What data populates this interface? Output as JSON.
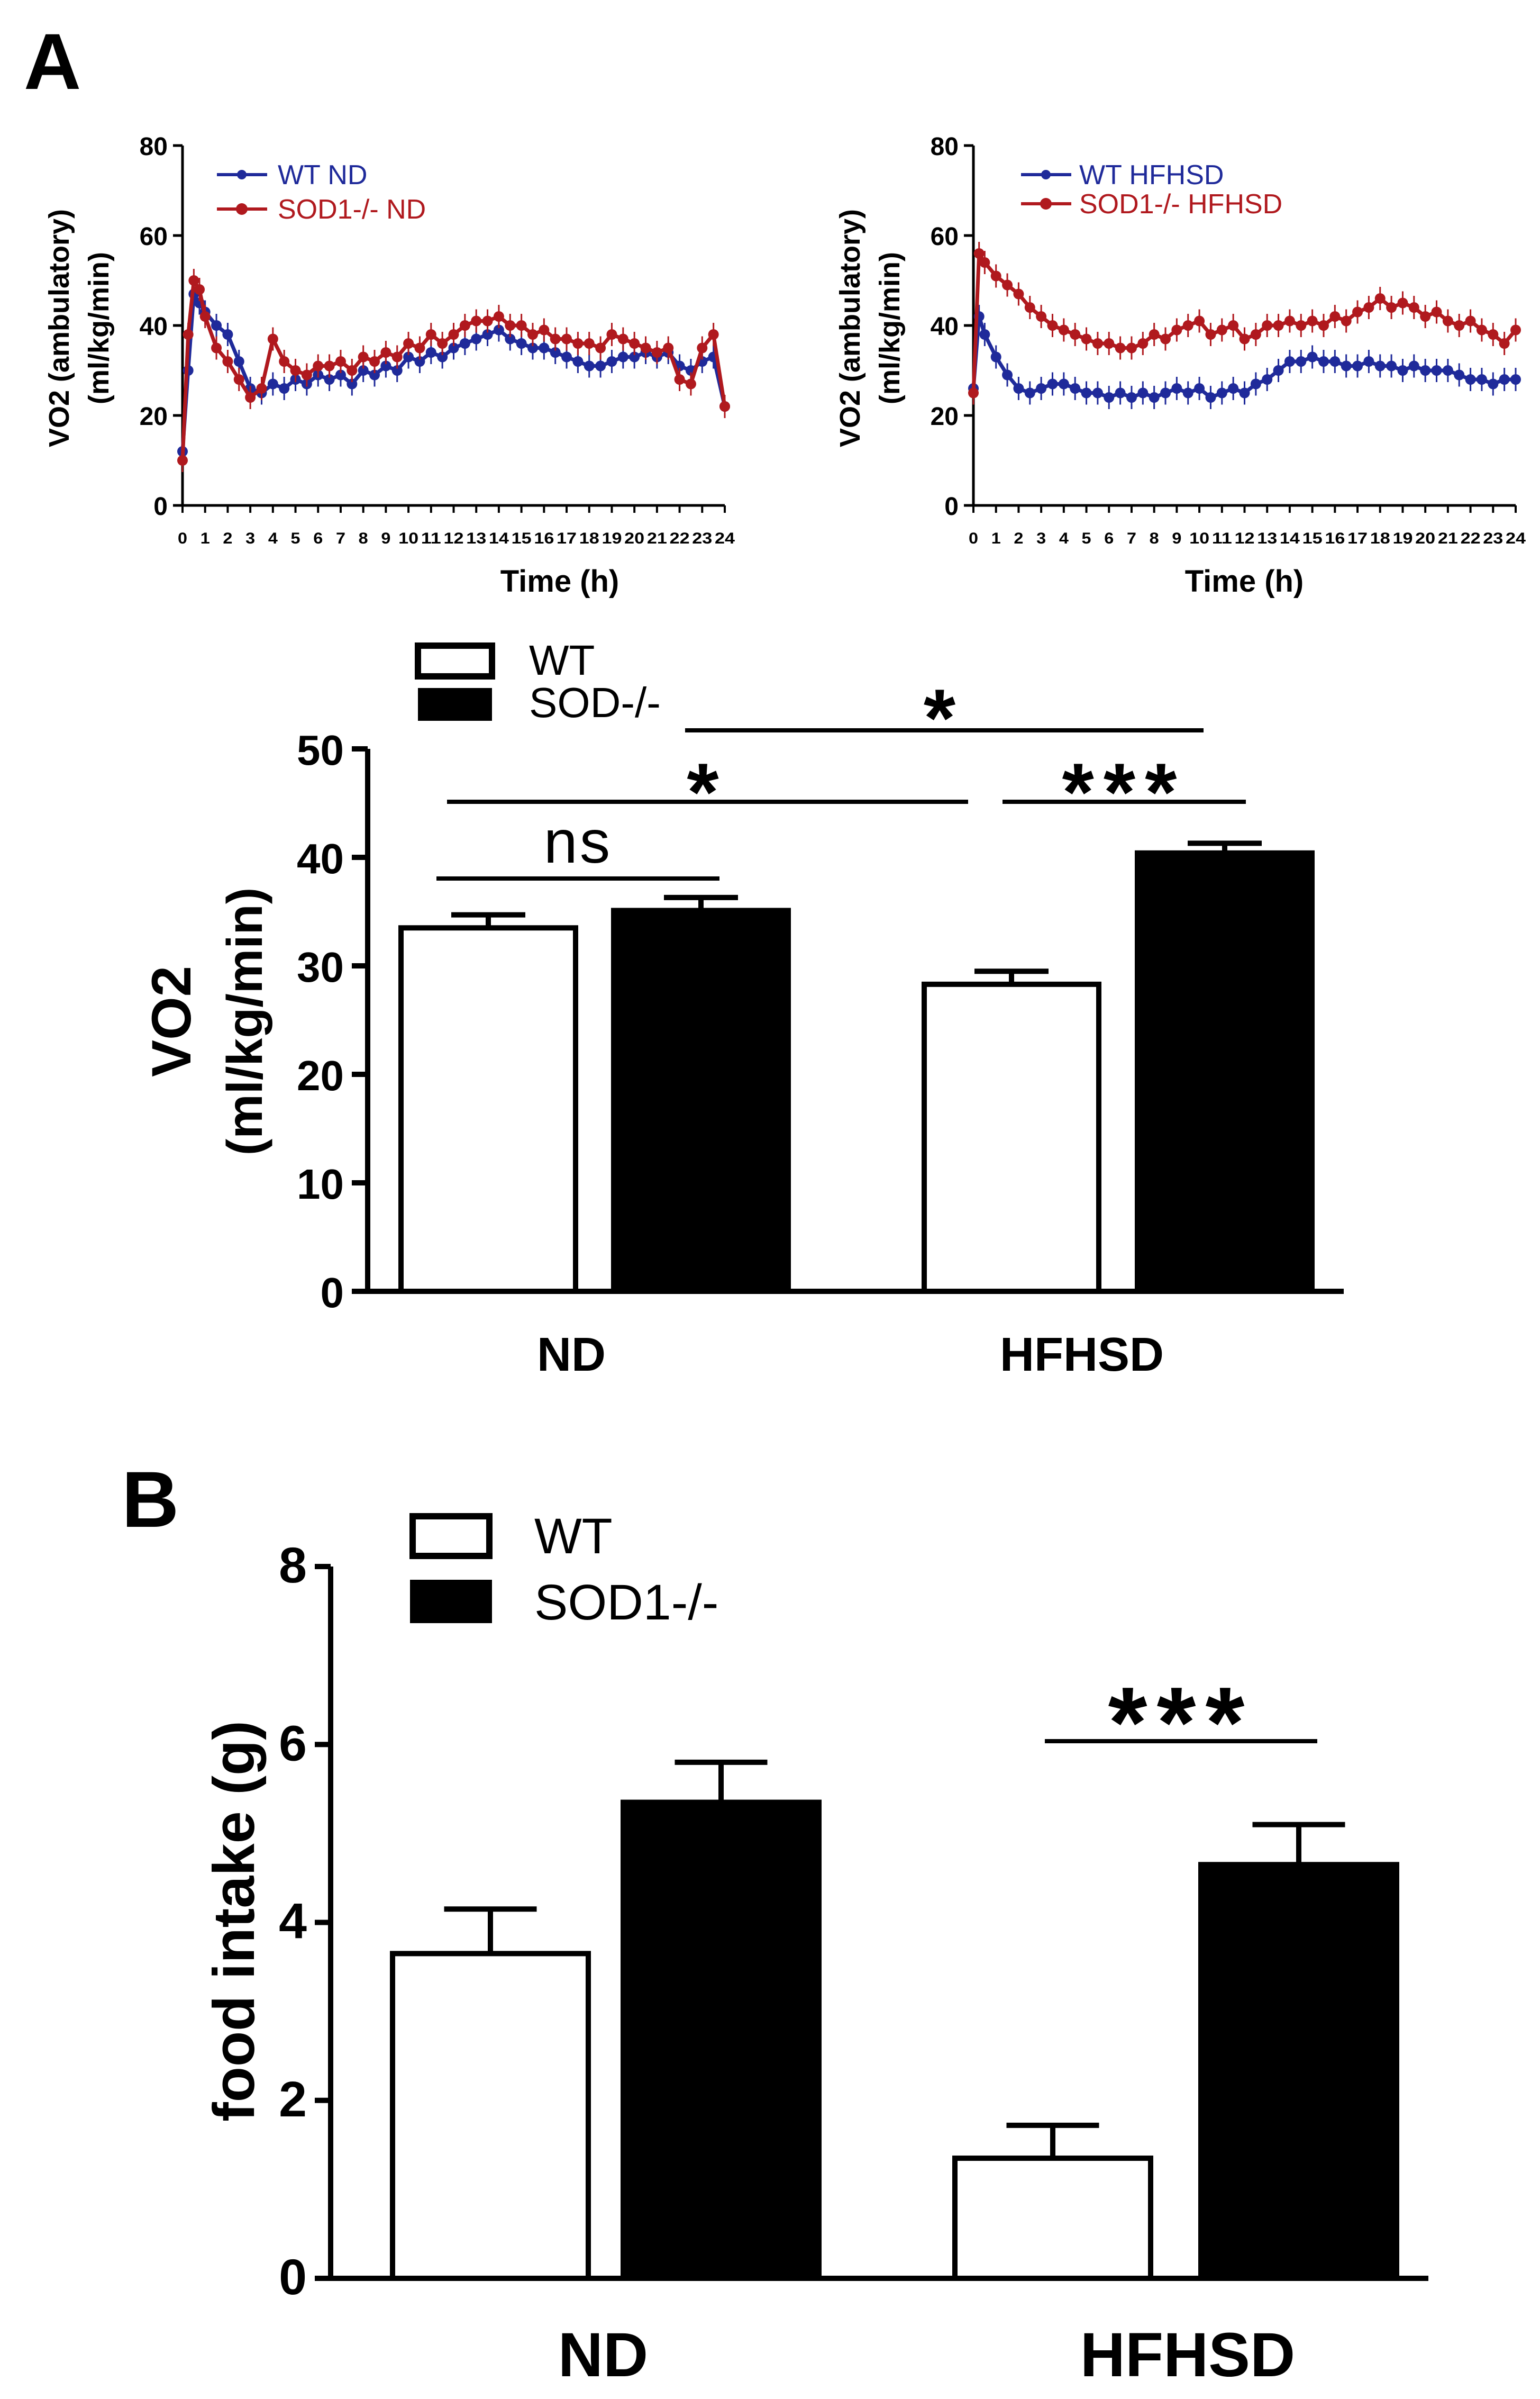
{
  "panel_labels": {
    "a": "A",
    "b": "B"
  },
  "colors": {
    "wt_line": "#1f2a9a",
    "sod_line": "#b0191e",
    "axis": "#000000",
    "wt_bar_fill": "#ffffff",
    "sod_bar_fill": "#000000"
  },
  "chart_data": [
    {
      "id": "line_nd",
      "type": "line",
      "title": "",
      "xlabel": "Time (h)",
      "ylabel_line1": "VO2 (ambulatory)",
      "ylabel_line2": "(ml/kg/min)",
      "xlim": [
        0,
        24
      ],
      "ylim": [
        0,
        80
      ],
      "yticks": [
        "0",
        "20",
        "40",
        "60",
        "80"
      ],
      "xticks": [
        "0",
        "1",
        "2",
        "3",
        "4",
        "5",
        "6",
        "7",
        "8",
        "9",
        "10",
        "11",
        "12",
        "13",
        "14",
        "15",
        "16",
        "17",
        "18",
        "19",
        "20",
        "21",
        "22",
        "23",
        "24"
      ],
      "legend_position": "top-left",
      "series": [
        {
          "name": "WT ND",
          "color": "#1f2a9a",
          "x": [
            0,
            0.25,
            0.5,
            0.75,
            1,
            1.5,
            2,
            2.5,
            3,
            3.5,
            4,
            4.5,
            5,
            5.5,
            6,
            6.5,
            7,
            7.5,
            8,
            8.5,
            9,
            9.5,
            10,
            10.5,
            11,
            11.5,
            12,
            12.5,
            13,
            13.5,
            14,
            14.5,
            15,
            15.5,
            16,
            16.5,
            17,
            17.5,
            18,
            18.5,
            19,
            19.5,
            20,
            20.5,
            21,
            21.5,
            22,
            22.5,
            23,
            23.5,
            24
          ],
          "y": [
            12,
            30,
            47,
            45,
            43,
            40,
            38,
            32,
            26,
            25,
            27,
            26,
            28,
            27,
            29,
            28,
            29,
            27,
            30,
            29,
            31,
            30,
            33,
            32,
            34,
            33,
            35,
            36,
            37,
            38,
            39,
            37,
            36,
            35,
            35,
            34,
            33,
            32,
            31,
            31,
            32,
            33,
            33,
            34,
            33,
            34,
            31,
            30,
            32,
            33,
            22
          ]
        },
        {
          "name": "SOD1-/- ND",
          "color": "#b0191e",
          "x": [
            0,
            0.25,
            0.5,
            0.75,
            1,
            1.5,
            2,
            2.5,
            3,
            3.5,
            4,
            4.5,
            5,
            5.5,
            6,
            6.5,
            7,
            7.5,
            8,
            8.5,
            9,
            9.5,
            10,
            10.5,
            11,
            11.5,
            12,
            12.5,
            13,
            13.5,
            14,
            14.5,
            15,
            15.5,
            16,
            16.5,
            17,
            17.5,
            18,
            18.5,
            19,
            19.5,
            20,
            20.5,
            21,
            21.5,
            22,
            22.5,
            23,
            23.5,
            24
          ],
          "y": [
            10,
            38,
            50,
            48,
            42,
            35,
            32,
            28,
            24,
            26,
            37,
            32,
            30,
            29,
            31,
            31,
            32,
            30,
            33,
            32,
            34,
            33,
            36,
            35,
            38,
            36,
            38,
            40,
            41,
            41,
            42,
            40,
            40,
            38,
            39,
            37,
            37,
            36,
            36,
            35,
            38,
            37,
            36,
            35,
            34,
            35,
            28,
            27,
            35,
            38,
            22
          ]
        }
      ]
    },
    {
      "id": "line_hfhsd",
      "type": "line",
      "title": "",
      "xlabel": "Time (h)",
      "ylabel_line1": "VO2 (ambulatory)",
      "ylabel_line2": "(ml/kg/min)",
      "xlim": [
        0,
        24
      ],
      "ylim": [
        0,
        80
      ],
      "yticks": [
        "0",
        "20",
        "40",
        "60",
        "80"
      ],
      "xticks": [
        "0",
        "1",
        "2",
        "3",
        "4",
        "5",
        "6",
        "7",
        "8",
        "9",
        "10",
        "11",
        "12",
        "13",
        "14",
        "15",
        "16",
        "17",
        "18",
        "19",
        "20",
        "21",
        "22",
        "23",
        "24"
      ],
      "legend_position": "top-left",
      "series": [
        {
          "name": "WT HFHSD",
          "color": "#1f2a9a",
          "x": [
            0,
            0.25,
            0.5,
            1,
            1.5,
            2,
            2.5,
            3,
            3.5,
            4,
            4.5,
            5,
            5.5,
            6,
            6.5,
            7,
            7.5,
            8,
            8.5,
            9,
            9.5,
            10,
            10.5,
            11,
            11.5,
            12,
            12.5,
            13,
            13.5,
            14,
            14.5,
            15,
            15.5,
            16,
            16.5,
            17,
            17.5,
            18,
            18.5,
            19,
            19.5,
            20,
            20.5,
            21,
            21.5,
            22,
            22.5,
            23,
            23.5,
            24
          ],
          "y": [
            26,
            42,
            38,
            33,
            29,
            26,
            25,
            26,
            27,
            27,
            26,
            25,
            25,
            24,
            25,
            24,
            25,
            24,
            25,
            26,
            25,
            26,
            24,
            25,
            26,
            25,
            27,
            28,
            30,
            32,
            32,
            33,
            32,
            32,
            31,
            31,
            32,
            31,
            31,
            30,
            31,
            30,
            30,
            30,
            29,
            28,
            28,
            27,
            28,
            28
          ]
        },
        {
          "name": "SOD1-/- HFHSD",
          "color": "#b0191e",
          "x": [
            0,
            0.25,
            0.5,
            1,
            1.5,
            2,
            2.5,
            3,
            3.5,
            4,
            4.5,
            5,
            5.5,
            6,
            6.5,
            7,
            7.5,
            8,
            8.5,
            9,
            9.5,
            10,
            10.5,
            11,
            11.5,
            12,
            12.5,
            13,
            13.5,
            14,
            14.5,
            15,
            15.5,
            16,
            16.5,
            17,
            17.5,
            18,
            18.5,
            19,
            19.5,
            20,
            20.5,
            21,
            21.5,
            22,
            22.5,
            23,
            23.5,
            24
          ],
          "y": [
            25,
            56,
            54,
            51,
            49,
            47,
            44,
            42,
            40,
            39,
            38,
            37,
            36,
            36,
            35,
            35,
            36,
            38,
            37,
            39,
            40,
            41,
            38,
            39,
            40,
            37,
            38,
            40,
            40,
            41,
            40,
            41,
            40,
            42,
            41,
            43,
            44,
            46,
            44,
            45,
            44,
            42,
            43,
            41,
            40,
            41,
            39,
            38,
            36,
            39
          ]
        }
      ]
    },
    {
      "id": "bar_vo2",
      "type": "bar",
      "title": "",
      "xlabel": "",
      "ylabel_line1": "VO2",
      "ylabel_line2": "(ml/kg/min)",
      "categories": [
        "ND",
        "HFHSD"
      ],
      "ylim": [
        0,
        50
      ],
      "yticks": [
        "0",
        "10",
        "20",
        "30",
        "40",
        "50"
      ],
      "legend_position": "top-left",
      "series": [
        {
          "name": "WT",
          "values": [
            33.5,
            28.3
          ],
          "errors": [
            1.2,
            1.2
          ]
        },
        {
          "name": "SOD-/-",
          "values": [
            35.1,
            40.4
          ],
          "errors": [
            1.2,
            0.9
          ]
        }
      ],
      "annotations": [
        {
          "label": "ns",
          "from": "WT ND",
          "to": "SOD-/- ND"
        },
        {
          "label": "*",
          "from": "WT ND",
          "to": "WT HFHSD"
        },
        {
          "label": "***",
          "from": "WT HFHSD",
          "to": "SOD-/- HFHSD"
        },
        {
          "label": "*",
          "from": "SOD-/- ND",
          "to": "SOD-/- HFHSD"
        }
      ]
    },
    {
      "id": "bar_food",
      "type": "bar",
      "title": "",
      "xlabel": "",
      "ylabel": "food intake (g)",
      "categories": [
        "ND",
        "HFHSD"
      ],
      "ylim": [
        0,
        8
      ],
      "yticks": [
        "0",
        "2",
        "4",
        "6",
        "8"
      ],
      "legend_position": "top-left",
      "series": [
        {
          "name": "WT",
          "values": [
            3.65,
            1.35
          ],
          "errors": [
            0.5,
            0.37
          ]
        },
        {
          "name": "SOD1-/-",
          "values": [
            5.35,
            4.65
          ],
          "errors": [
            0.45,
            0.45
          ]
        }
      ],
      "annotations": [
        {
          "label": "***",
          "from": "WT HFHSD",
          "to": "SOD1-/- HFHSD"
        }
      ]
    }
  ]
}
